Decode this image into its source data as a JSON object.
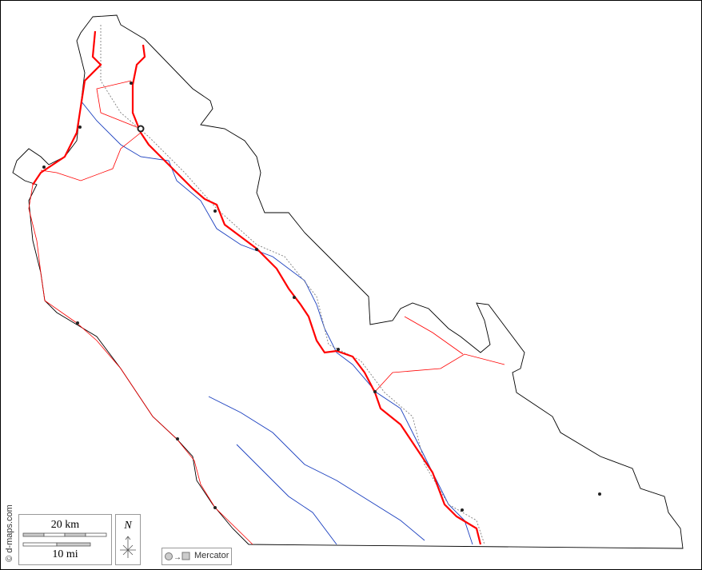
{
  "map": {
    "attribution": "© d-maps.com",
    "scale": {
      "km_label": "20 km",
      "mi_label": "10 mi"
    },
    "north_arrow": {
      "label": "N"
    },
    "projection": {
      "label": "Mercator",
      "icon": "circle-to-square-icon"
    },
    "colors": {
      "border": "#000000",
      "major_road": "#ff0000",
      "minor_road": "#ff0000",
      "river": "#1a3fbf",
      "railway": "#808080",
      "city": "#222222"
    },
    "cities_count_shown": 14
  }
}
